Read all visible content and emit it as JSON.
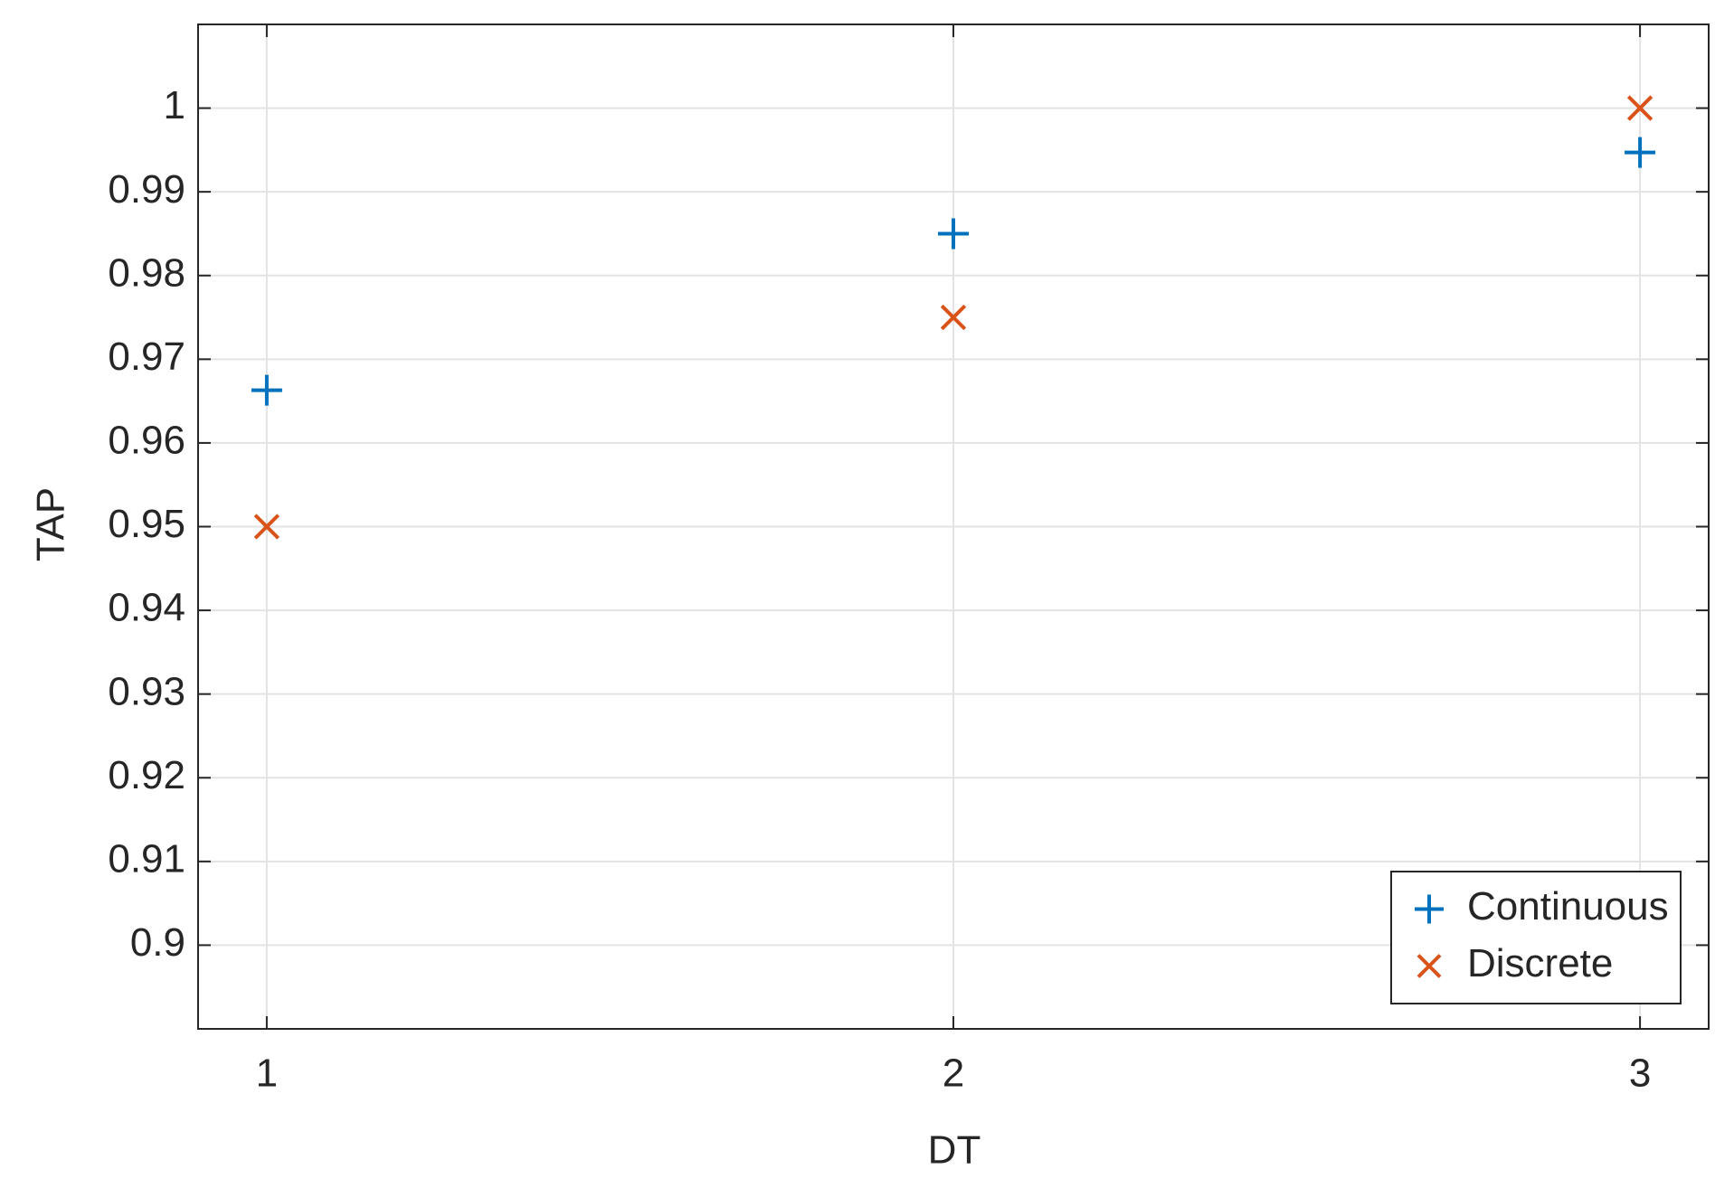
{
  "chart_data": {
    "type": "scatter",
    "xlabel": "DT",
    "ylabel": "TAP",
    "xlim": [
      0.9,
      3.1
    ],
    "ylim": [
      0.89,
      1.01
    ],
    "xticks": [
      1,
      2,
      3
    ],
    "yticks": [
      0.9,
      0.91,
      0.92,
      0.93,
      0.94,
      0.95,
      0.96,
      0.97,
      0.98,
      0.99,
      1
    ],
    "grid": true,
    "legend_position": "lower right",
    "series": [
      {
        "name": "Continuous",
        "color": "#0072BD",
        "marker": "plus",
        "x": [
          1,
          2,
          3
        ],
        "values": [
          0.9663,
          0.985,
          0.9947
        ]
      },
      {
        "name": "Discrete",
        "color": "#D95319",
        "marker": "x",
        "x": [
          1,
          2,
          3
        ],
        "values": [
          0.95,
          0.975,
          1.0
        ]
      }
    ]
  }
}
